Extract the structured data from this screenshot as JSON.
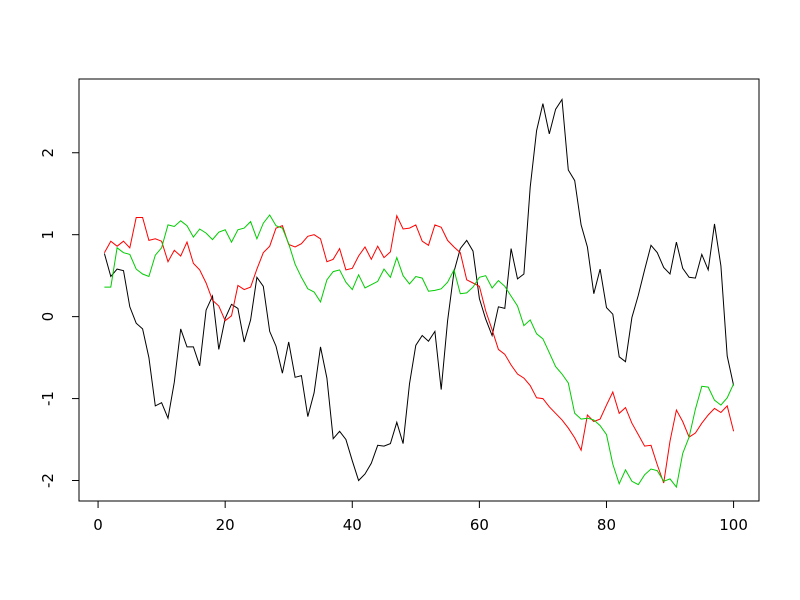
{
  "chart_data": {
    "type": "line",
    "title": "",
    "xlabel": "",
    "ylabel": "",
    "xlim": [
      -3,
      104
    ],
    "ylim": [
      -2.25,
      2.9
    ],
    "x_ticks": [
      0,
      20,
      40,
      60,
      80,
      100
    ],
    "x_tick_labels": [
      "0",
      "20",
      "40",
      "60",
      "80",
      "100"
    ],
    "y_ticks": [
      -2,
      -1,
      0,
      1,
      2
    ],
    "y_tick_labels": [
      "-2",
      "-1",
      "0",
      "1",
      "2"
    ],
    "grid": false,
    "legend": "none",
    "x": [
      1,
      2,
      3,
      4,
      5,
      6,
      7,
      8,
      9,
      10,
      11,
      12,
      13,
      14,
      15,
      16,
      17,
      18,
      19,
      20,
      21,
      22,
      23,
      24,
      25,
      26,
      27,
      28,
      29,
      30,
      31,
      32,
      33,
      34,
      35,
      36,
      37,
      38,
      39,
      40,
      41,
      42,
      43,
      44,
      45,
      46,
      47,
      48,
      49,
      50,
      51,
      52,
      53,
      54,
      55,
      56,
      57,
      58,
      59,
      60,
      61,
      62,
      63,
      64,
      65,
      66,
      67,
      68,
      69,
      70,
      71,
      72,
      73,
      74,
      75,
      76,
      77,
      78,
      79,
      80,
      81,
      82,
      83,
      84,
      85,
      86,
      87,
      88,
      89,
      90,
      91,
      92,
      93,
      94,
      95,
      96,
      97,
      98,
      99,
      100
    ],
    "series": [
      {
        "color": "#000000",
        "values": [
          0.77,
          0.49,
          0.58,
          0.56,
          0.12,
          -0.08,
          -0.15,
          -0.5,
          -1.09,
          -1.05,
          -1.24,
          -0.8,
          -0.15,
          -0.37,
          -0.37,
          -0.6,
          0.08,
          0.25,
          -0.4,
          -0.02,
          0.15,
          0.1,
          -0.31,
          -0.04,
          0.48,
          0.37,
          -0.18,
          -0.36,
          -0.69,
          -0.31,
          -0.74,
          -0.72,
          -1.22,
          -0.93,
          -0.37,
          -0.75,
          -1.49,
          -1.4,
          -1.5,
          -1.76,
          -2.0,
          -1.92,
          -1.79,
          -1.57,
          -1.58,
          -1.55,
          -1.29,
          -1.55,
          -0.82,
          -0.35,
          -0.23,
          -0.3,
          -0.18,
          -0.89,
          -0.05,
          0.55,
          0.83,
          0.93,
          0.8,
          0.22,
          -0.03,
          -0.23,
          0.12,
          0.1,
          0.83,
          0.46,
          0.52,
          1.58,
          2.27,
          2.6,
          2.23,
          2.53,
          2.65,
          1.79,
          1.66,
          1.12,
          0.85,
          0.28,
          0.58,
          0.11,
          0.03,
          -0.49,
          -0.55,
          -0.01,
          0.26,
          0.57,
          0.87,
          0.78,
          0.6,
          0.52,
          0.91,
          0.59,
          0.48,
          0.47,
          0.76,
          0.57,
          1.13,
          0.62,
          -0.48,
          -0.84
        ]
      },
      {
        "color": "#ff0000",
        "values": [
          0.78,
          0.92,
          0.86,
          0.92,
          0.84,
          1.21,
          1.21,
          0.93,
          0.95,
          0.92,
          0.67,
          0.81,
          0.74,
          0.91,
          0.65,
          0.57,
          0.41,
          0.2,
          0.13,
          -0.05,
          0.01,
          0.38,
          0.33,
          0.36,
          0.58,
          0.78,
          0.86,
          1.08,
          1.11,
          0.88,
          0.85,
          0.89,
          0.98,
          1.0,
          0.95,
          0.67,
          0.7,
          0.83,
          0.57,
          0.59,
          0.74,
          0.85,
          0.7,
          0.86,
          0.72,
          0.79,
          1.23,
          1.07,
          1.08,
          1.12,
          0.92,
          0.87,
          1.12,
          1.09,
          0.93,
          0.85,
          0.78,
          0.45,
          0.41,
          0.37,
          0.07,
          -0.16,
          -0.4,
          -0.46,
          -0.59,
          -0.7,
          -0.75,
          -0.84,
          -0.99,
          -1.0,
          -1.1,
          -1.18,
          -1.26,
          -1.36,
          -1.48,
          -1.63,
          -1.2,
          -1.28,
          -1.25,
          -1.08,
          -0.92,
          -1.18,
          -1.11,
          -1.3,
          -1.44,
          -1.58,
          -1.57,
          -1.81,
          -2.03,
          -1.52,
          -1.14,
          -1.28,
          -1.47,
          -1.42,
          -1.3,
          -1.2,
          -1.12,
          -1.17,
          -1.09,
          -1.4
        ]
      },
      {
        "color": "#00cd00",
        "values": [
          0.36,
          0.36,
          0.84,
          0.78,
          0.76,
          0.58,
          0.52,
          0.49,
          0.75,
          0.84,
          1.12,
          1.1,
          1.17,
          1.11,
          0.97,
          1.07,
          1.02,
          0.94,
          1.03,
          1.06,
          0.91,
          1.06,
          1.08,
          1.16,
          0.95,
          1.14,
          1.24,
          1.11,
          1.08,
          0.89,
          0.64,
          0.48,
          0.34,
          0.3,
          0.18,
          0.45,
          0.55,
          0.57,
          0.42,
          0.33,
          0.51,
          0.35,
          0.39,
          0.43,
          0.58,
          0.48,
          0.72,
          0.5,
          0.4,
          0.49,
          0.47,
          0.31,
          0.32,
          0.34,
          0.42,
          0.57,
          0.28,
          0.29,
          0.36,
          0.48,
          0.5,
          0.35,
          0.44,
          0.37,
          0.25,
          0.13,
          -0.11,
          -0.04,
          -0.21,
          -0.27,
          -0.44,
          -0.61,
          -0.7,
          -0.81,
          -1.18,
          -1.25,
          -1.24,
          -1.26,
          -1.33,
          -1.44,
          -1.8,
          -2.04,
          -1.87,
          -2.01,
          -2.05,
          -1.93,
          -1.86,
          -1.88,
          -2.01,
          -1.98,
          -2.08,
          -1.67,
          -1.47,
          -1.13,
          -0.85,
          -0.86,
          -1.02,
          -1.08,
          -0.99,
          -0.82
        ]
      }
    ]
  }
}
